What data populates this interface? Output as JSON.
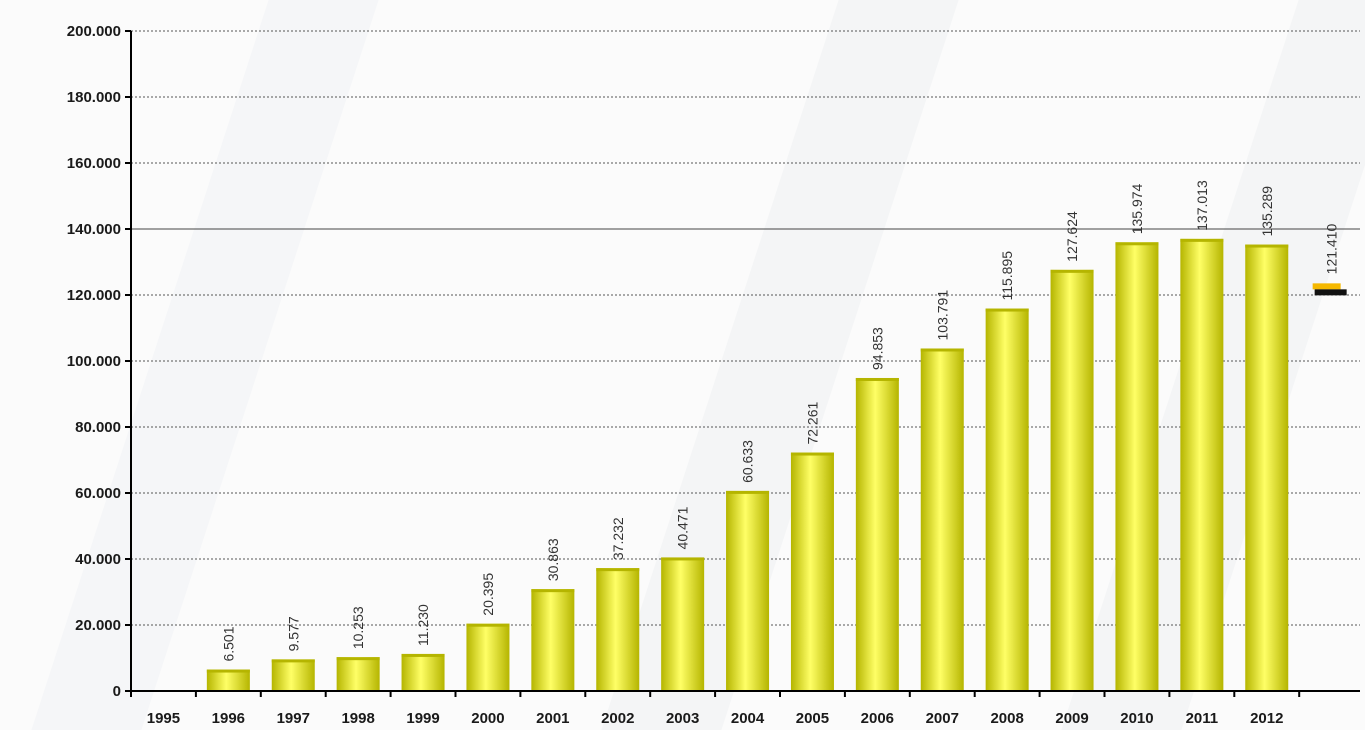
{
  "chart_data": {
    "type": "bar",
    "categories": [
      "1995",
      "1996",
      "1997",
      "1998",
      "1999",
      "2000",
      "2001",
      "2002",
      "2003",
      "2004",
      "2005",
      "2006",
      "2007",
      "2008",
      "2009",
      "2010",
      "2011",
      "2012"
    ],
    "x_tick_labels": [
      "1995",
      "1996",
      "1997",
      "1998",
      "1999",
      "2000",
      "2001",
      "2002",
      "2003",
      "2004",
      "2005",
      "2006",
      "2007",
      "2008",
      "2009",
      "2010",
      "2011",
      "2012"
    ],
    "values": [
      0,
      6501,
      9577,
      10253,
      11230,
      20395,
      30863,
      37232,
      40471,
      60633,
      72261,
      94853,
      103791,
      115895,
      127624,
      135974,
      137013,
      135289
    ],
    "data_labels": [
      "",
      "6.501",
      "9.577",
      "10.253",
      "11.230",
      "20.395",
      "30.863",
      "37.232",
      "40.471",
      "60.633",
      "72.261",
      "94.853",
      "103.791",
      "115.895",
      "127.624",
      "135.974",
      "137.013",
      "135.289"
    ],
    "marker": {
      "value": 121410,
      "label": "121.410",
      "colors": [
        "#f5b800",
        "#111111"
      ]
    },
    "y_ticks": [
      0,
      20000,
      40000,
      60000,
      80000,
      100000,
      120000,
      140000,
      160000,
      180000,
      200000
    ],
    "y_tick_labels": [
      "0",
      "20.000",
      "40.000",
      "60.000",
      "80.000",
      "100.000",
      "120.000",
      "140.000",
      "160.000",
      "180.000",
      "200.000"
    ],
    "ylim": [
      0,
      200000
    ],
    "grid": true,
    "bar_color": "#e8e800",
    "bar_highlight": "#ffff66",
    "bar_shadow": "#b5b500",
    "title": "",
    "xlabel": "",
    "ylabel": ""
  }
}
